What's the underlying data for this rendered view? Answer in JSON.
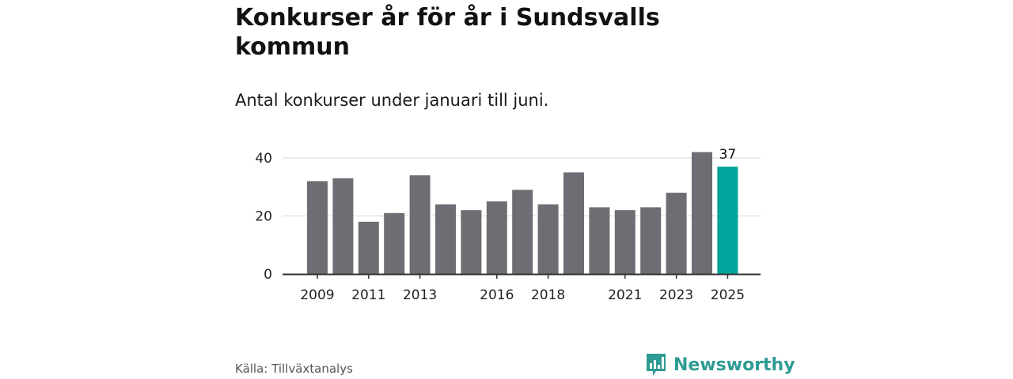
{
  "header": {
    "title": "Konkurser år för år i Sundsvalls kommun",
    "subtitle": "Antal konkurser under januari till juni."
  },
  "footer": {
    "source": "Källa: Tillväxtanalys",
    "brand": "Newsworthy"
  },
  "colors": {
    "bar": "#6e6d73",
    "highlight": "#00a49a",
    "brand": "#2f9c93"
  },
  "chart_data": {
    "type": "bar",
    "title": "Konkurser år för år i Sundsvalls kommun",
    "subtitle": "Antal konkurser under januari till juni.",
    "categories": [
      "2009",
      "2010",
      "2011",
      "2012",
      "2013",
      "2014",
      "2015",
      "2016",
      "2017",
      "2018",
      "2019",
      "2020",
      "2021",
      "2022",
      "2023",
      "2024",
      "2025"
    ],
    "values": [
      32,
      33,
      18,
      21,
      34,
      24,
      22,
      25,
      29,
      24,
      35,
      23,
      22,
      23,
      28,
      42,
      37
    ],
    "x_tick_labels": [
      "2009",
      "2011",
      "2013",
      "2016",
      "2018",
      "2021",
      "2023",
      "2025"
    ],
    "y_ticks": [
      0,
      20,
      40
    ],
    "ylim": [
      0,
      40
    ],
    "grid": true,
    "highlight": {
      "category": "2025",
      "label": "37"
    },
    "xlabel": "",
    "ylabel": ""
  }
}
